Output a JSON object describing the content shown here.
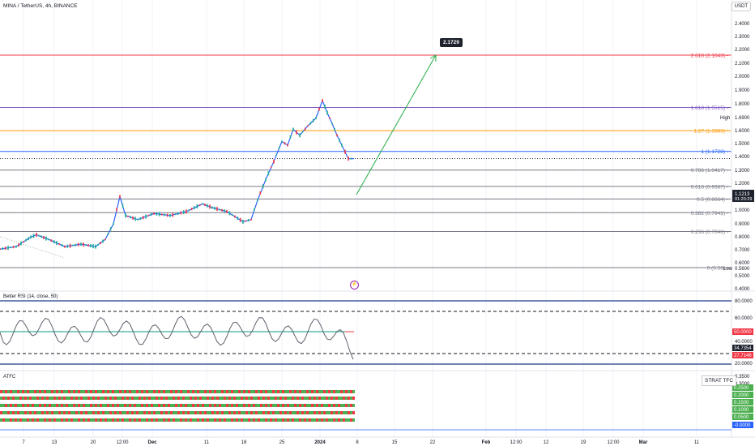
{
  "header": {
    "symbol": "MINA / TetherUS, 4h, BINANCE",
    "currency": "USDT"
  },
  "target_label": "2.1729",
  "fib_levels": [
    {
      "label": "2.618 (2.1643)",
      "price": 2.1643,
      "color": "#f23645"
    },
    {
      "label": "1.618 (1.5515)",
      "price": 1.5515,
      "color": "#7e57c2"
    },
    {
      "label": "1.27 (1.3383)",
      "price": 1.3383,
      "color": "#ff9800"
    },
    {
      "label": "1 (1.1728)",
      "price": 1.1728,
      "color": "#2962ff"
    },
    {
      "label": "0.786 (1.0417)",
      "price": 1.0417,
      "color": "#787b86"
    },
    {
      "label": "0.618 (0.9387)",
      "price": 0.9387,
      "color": "#787b86"
    },
    {
      "label": "0.5 (0.8664)",
      "price": 0.8664,
      "color": "#787b86"
    },
    {
      "label": "0.382 (0.7941)",
      "price": 0.7941,
      "color": "#787b86"
    },
    {
      "label": "0.236 (0.7046)",
      "price": 0.7046,
      "color": "#787b86"
    },
    {
      "label": "0 (0.56)",
      "price": 0.56,
      "color": "#787b86"
    }
  ],
  "price_axis": {
    "ticks": [
      "2.4000",
      "2.3000",
      "2.2000",
      "2.1000",
      "2.0000",
      "1.9000",
      "1.8000",
      "1.6000",
      "1.5000",
      "1.4000",
      "1.3000",
      "1.2000",
      "1.0000",
      "0.9000",
      "0.8000",
      "0.7000",
      "0.6000",
      "0.5000",
      "0.4000"
    ],
    "high_label": "High",
    "high_value": "1.6900",
    "low_label": "Low",
    "low_value": "0.5600",
    "last_price": "1.1213",
    "countdown": "01:20:29"
  },
  "rsi": {
    "title": "Better RSI (14, close, 50)",
    "axis_ticks": [
      "80.0000",
      "60.0000",
      "40.0000",
      "20.0000"
    ],
    "badge_mid": "50.0000",
    "badge_val": "34.7354",
    "badge_low": "27.7146"
  },
  "atfc": {
    "title": "ATFC",
    "label": "STRAT TFC",
    "axis_ticks": [
      "0.3500",
      "0.3000"
    ],
    "badges": [
      "0.2500",
      "0.2000",
      "0.1500",
      "0.1000",
      "0.0500",
      "-0.0000"
    ]
  },
  "x_axis": [
    "7",
    "13",
    "20",
    "12:00",
    "Dec",
    "11",
    "18",
    "25",
    "2024",
    "8",
    "15",
    "22",
    "Feb",
    "12:00",
    "12",
    "19",
    "12:00",
    "Mar",
    "11"
  ],
  "colors": {
    "up": "#22ab94",
    "down": "#f23645",
    "green_line": "#089981",
    "navy": "#1e3a8a"
  }
}
